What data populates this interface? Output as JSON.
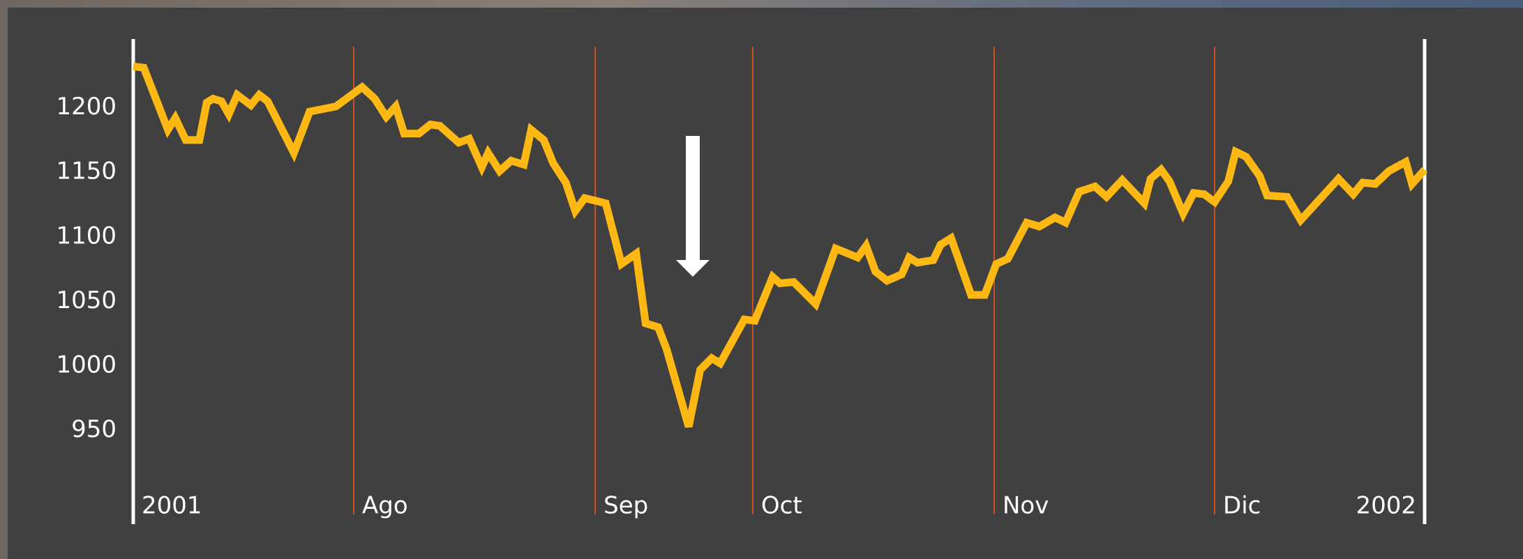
{
  "chart_data": {
    "type": "line",
    "x": [
      0,
      1,
      3.3,
      4,
      5,
      6.3,
      7,
      7.6,
      8.4,
      9.1,
      9.9,
      11.2,
      12,
      12.8,
      15.3,
      16.8,
      19.3,
      21.8,
      23,
      24.1,
      25,
      25.8,
      27.2,
      28.3,
      29.2,
      31,
      32,
      33.2,
      33.8,
      34.9,
      36,
      37.2,
      37.9,
      39.1,
      40,
      41.2,
      42.1,
      43,
      45,
      46.5,
      47.9,
      48.8,
      50,
      50.8,
      52.9,
      54,
      55.1,
      55.9,
      58.2,
      59.2,
      60.9,
      61.6,
      62.9,
      65,
      66.9,
      69,
      69.8,
      70.7,
      71.8,
      73.2,
      73.9,
      74.7,
      76.2,
      76.9,
      77.9,
      79.8,
      81.1,
      82.2,
      83.3,
      85.1,
      86.3,
      87.8,
      88.8,
      90.1,
      91.6,
      92.7,
      94.2,
      96.3,
      96.9,
      97.9,
      98.7,
      100,
      101,
      102,
      103,
      104.3,
      105,
      106,
      107.3,
      108,
      109.9,
      111.2,
      114.8,
      116.2,
      117.1,
      118.3,
      119.6,
      121.2,
      121.8,
      123
    ],
    "values": [
      1232,
      1231,
      1183,
      1192,
      1175,
      1175,
      1204,
      1207,
      1205,
      1195,
      1210,
      1202,
      1210,
      1205,
      1165,
      1197,
      1201,
      1216,
      1207,
      1193,
      1201,
      1180,
      1180,
      1187,
      1186,
      1173,
      1176,
      1154,
      1165,
      1151,
      1159,
      1156,
      1183,
      1175,
      1157,
      1142,
      1120,
      1130,
      1126,
      1079,
      1087,
      1033,
      1030,
      1013,
      953,
      997,
      1006,
      1002,
      1036,
      1035,
      1069,
      1064,
      1065,
      1048,
      1091,
      1084,
      1093,
      1073,
      1066,
      1071,
      1084,
      1080,
      1082,
      1094,
      1099,
      1055,
      1055,
      1079,
      1083,
      1111,
      1108,
      1115,
      1111,
      1135,
      1139,
      1131,
      1144,
      1126,
      1145,
      1152,
      1143,
      1118,
      1134,
      1133,
      1127,
      1143,
      1166,
      1162,
      1147,
      1132,
      1131,
      1113,
      1145,
      1133,
      1142,
      1141,
      1151,
      1158,
      1141,
      1152
    ],
    "color": "#fdb813",
    "xlim": [
      0,
      123
    ],
    "xticks": [
      {
        "value": 0,
        "label": "2001"
      },
      {
        "value": 21,
        "label": "Ago"
      },
      {
        "value": 44,
        "label": "Sep"
      },
      {
        "value": 59,
        "label": "Oct"
      },
      {
        "value": 82,
        "label": "Nov"
      },
      {
        "value": 103,
        "label": "Dic"
      },
      {
        "value": 123,
        "label": "2002"
      }
    ],
    "ylim": [
      885,
      1250
    ],
    "yticks": [
      950,
      1000,
      1050,
      1100,
      1150,
      1200
    ],
    "grid": true,
    "grid_color": "#c9541e",
    "frame_color": "#ffffff"
  }
}
